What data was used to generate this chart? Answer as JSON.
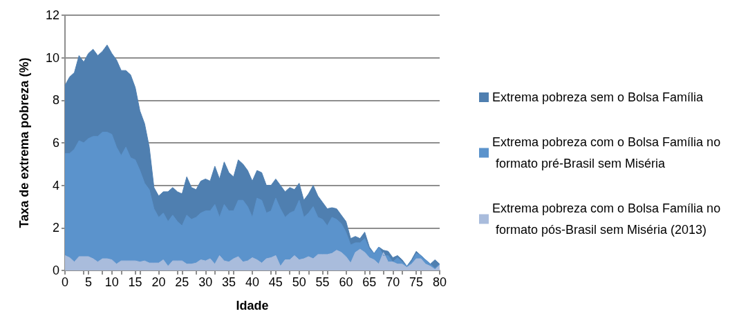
{
  "chart_data": {
    "type": "area",
    "xlabel": "Idade",
    "ylabel": "Taxa de extrema pobreza (%)",
    "x": [
      0,
      1,
      2,
      3,
      4,
      5,
      6,
      7,
      8,
      9,
      10,
      11,
      12,
      13,
      14,
      15,
      16,
      17,
      18,
      19,
      20,
      21,
      22,
      23,
      24,
      25,
      26,
      27,
      28,
      29,
      30,
      31,
      32,
      33,
      34,
      35,
      36,
      37,
      38,
      39,
      40,
      41,
      42,
      43,
      44,
      45,
      46,
      47,
      48,
      49,
      50,
      51,
      52,
      53,
      54,
      55,
      56,
      57,
      58,
      59,
      60,
      61,
      62,
      63,
      64,
      65,
      66,
      67,
      68,
      69,
      70,
      71,
      72,
      73,
      74,
      75,
      76,
      77,
      78,
      79,
      80
    ],
    "xlim": [
      0,
      80
    ],
    "xticks": [
      0,
      5,
      10,
      15,
      20,
      25,
      30,
      35,
      40,
      45,
      50,
      55,
      60,
      65,
      70,
      75,
      80
    ],
    "ylim": [
      0,
      12
    ],
    "yticks": [
      0,
      2,
      4,
      6,
      8,
      10,
      12
    ],
    "grid": "y",
    "legend": "right",
    "series": [
      {
        "name": "Extrema pobreza sem o Bolsa Família",
        "color": "#4f7fb0",
        "values": [
          8.7,
          9.1,
          9.3,
          10.1,
          9.8,
          10.2,
          10.4,
          10.1,
          10.3,
          10.6,
          10.2,
          9.9,
          9.4,
          9.4,
          9.2,
          8.6,
          7.5,
          6.9,
          5.8,
          3.9,
          3.5,
          3.7,
          3.7,
          3.9,
          3.7,
          3.6,
          4.4,
          3.9,
          3.8,
          4.2,
          4.3,
          4.2,
          4.9,
          4.3,
          5.1,
          4.6,
          4.4,
          5.2,
          5.0,
          4.7,
          4.2,
          4.7,
          4.6,
          4.0,
          4.0,
          4.3,
          4.0,
          3.7,
          3.9,
          3.8,
          4.1,
          3.3,
          3.6,
          4.0,
          3.5,
          3.2,
          2.9,
          2.95,
          2.9,
          2.6,
          2.3,
          1.5,
          1.6,
          1.5,
          1.8,
          1.1,
          0.8,
          1.1,
          0.95,
          0.9,
          0.6,
          0.7,
          0.5,
          0.2,
          0.5,
          0.9,
          0.7,
          0.5,
          0.3,
          0.5,
          0.3
        ]
      },
      {
        "name": "Extrema pobreza com o Bolsa Família no formato pré-Brasil sem Miséria",
        "color": "#5b93cc",
        "values": [
          5.5,
          5.5,
          5.7,
          6.1,
          6.0,
          6.2,
          6.3,
          6.3,
          6.5,
          6.5,
          6.4,
          5.8,
          5.4,
          5.8,
          5.3,
          5.2,
          4.7,
          4.1,
          3.8,
          2.9,
          2.5,
          2.7,
          2.3,
          2.6,
          2.3,
          2.1,
          2.6,
          2.4,
          2.5,
          2.7,
          2.8,
          2.8,
          3.1,
          2.5,
          3.1,
          2.8,
          2.8,
          3.3,
          3.3,
          3.0,
          2.5,
          3.4,
          3.3,
          2.7,
          2.8,
          3.4,
          2.9,
          2.5,
          2.7,
          2.8,
          3.3,
          2.5,
          2.7,
          3.0,
          2.5,
          2.4,
          2.1,
          2.5,
          2.4,
          2.2,
          1.8,
          1.2,
          1.3,
          1.3,
          1.5,
          1.0,
          0.8,
          1.1,
          0.7,
          0.7,
          0.4,
          0.6,
          0.4,
          0.2,
          0.4,
          0.8,
          0.7,
          0.5,
          0.3,
          0.1,
          0.3
        ]
      },
      {
        "name": "Extrema pobreza com o Bolsa Família no formato pós-Brasil sem Miséria (2013)",
        "color": "#a9bcdc",
        "values": [
          0.7,
          0.6,
          0.4,
          0.65,
          0.65,
          0.65,
          0.55,
          0.4,
          0.55,
          0.55,
          0.5,
          0.3,
          0.45,
          0.45,
          0.45,
          0.45,
          0.4,
          0.45,
          0.35,
          0.35,
          0.35,
          0.5,
          0.2,
          0.45,
          0.45,
          0.45,
          0.3,
          0.3,
          0.35,
          0.5,
          0.45,
          0.55,
          0.3,
          0.7,
          0.45,
          0.4,
          0.55,
          0.65,
          0.4,
          0.45,
          0.6,
          0.5,
          0.35,
          0.55,
          0.6,
          0.7,
          0.2,
          0.5,
          0.5,
          0.7,
          0.5,
          0.55,
          0.65,
          0.55,
          0.75,
          0.75,
          0.75,
          0.8,
          0.95,
          0.85,
          0.65,
          0.35,
          0.85,
          1.0,
          0.85,
          0.6,
          0.5,
          0.3,
          0.85,
          0.4,
          0.4,
          0.3,
          0.3,
          0.15,
          0.3,
          0.55,
          0.55,
          0.3,
          0.2,
          0.05,
          0.25
        ]
      }
    ]
  }
}
